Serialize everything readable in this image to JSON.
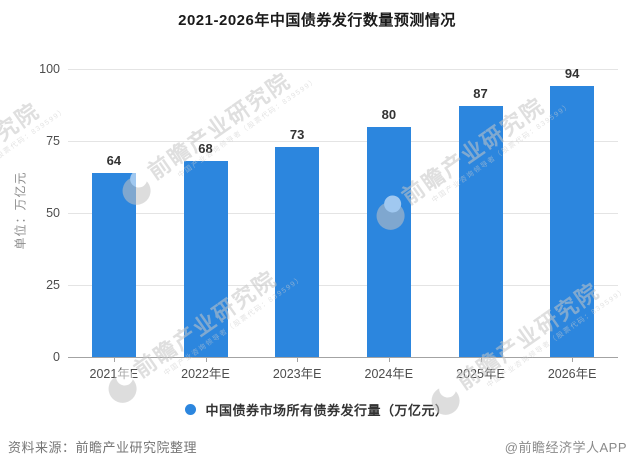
{
  "title": "2021-2026年中国债券发行数量预测情况",
  "chart_data": {
    "type": "bar",
    "categories": [
      "2021年E",
      "2022年E",
      "2023年E",
      "2024年E",
      "2025年E",
      "2026年E"
    ],
    "values": [
      64,
      68,
      73,
      80,
      87,
      94
    ],
    "title": "2021-2026年中国债券发行数量预测情况",
    "xlabel": "",
    "ylabel": "单位：万亿元",
    "ylim": [
      0,
      100
    ],
    "yticks": [
      0,
      25,
      50,
      75,
      100
    ],
    "grid": true,
    "bar_color": "#2c86de",
    "legend": [
      "中国债券市场所有债券发行量（万亿元）"
    ],
    "legend_position": "bottom"
  },
  "y_axis": {
    "unit_label": "单位：万亿元"
  },
  "legend": {
    "label": "中国债券市场所有债券发行量（万亿元）",
    "dot_color": "#2c86de"
  },
  "footer": {
    "source": "资料来源：前瞻产业研究院整理",
    "credit": "@前瞻经济学人APP"
  },
  "watermark": {
    "logo": "qianzhan-logo",
    "text": "前瞻产业研究院",
    "subtext": "中国产业咨询领导者（股票代码：839599）"
  },
  "colors": {
    "bar": "#2c86de",
    "gridline": "#e4e4e4",
    "axis": "#a3a3a3",
    "value_label": "#333333",
    "tick_label": "#4d4d4d",
    "title": "#1a1a1a",
    "footer": "#757575",
    "watermark": "#c6c6c6"
  }
}
